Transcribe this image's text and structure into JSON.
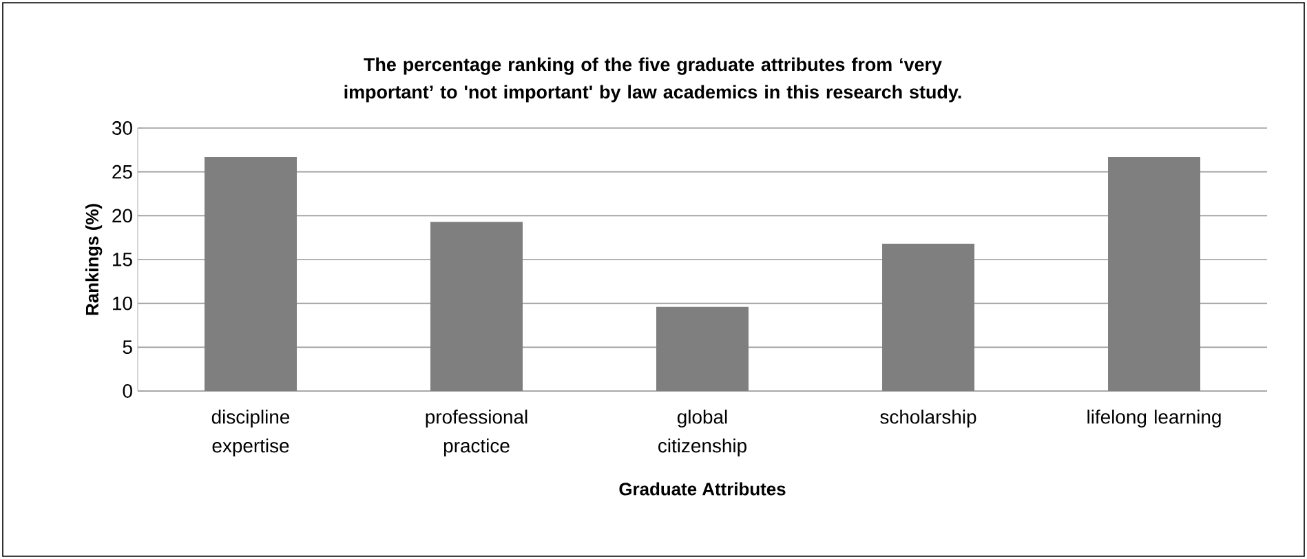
{
  "chart_data": {
    "type": "bar",
    "title": "The percentage ranking of the five graduate attributes from ‘very important’ to 'not important' by law academics in this research study.",
    "xlabel": "Graduate Attributes",
    "ylabel": "Rankings (%)",
    "categories": [
      "discipline expertise",
      "professional practice",
      "global citizenship",
      "scholarship",
      "lifelong learning"
    ],
    "values": [
      26.7,
      19.3,
      9.6,
      16.8,
      26.7
    ],
    "color": "#7f7f7f",
    "ylim": [
      0,
      30
    ],
    "yticks": [
      0,
      5,
      10,
      15,
      20,
      25,
      30
    ],
    "grid": "y"
  }
}
